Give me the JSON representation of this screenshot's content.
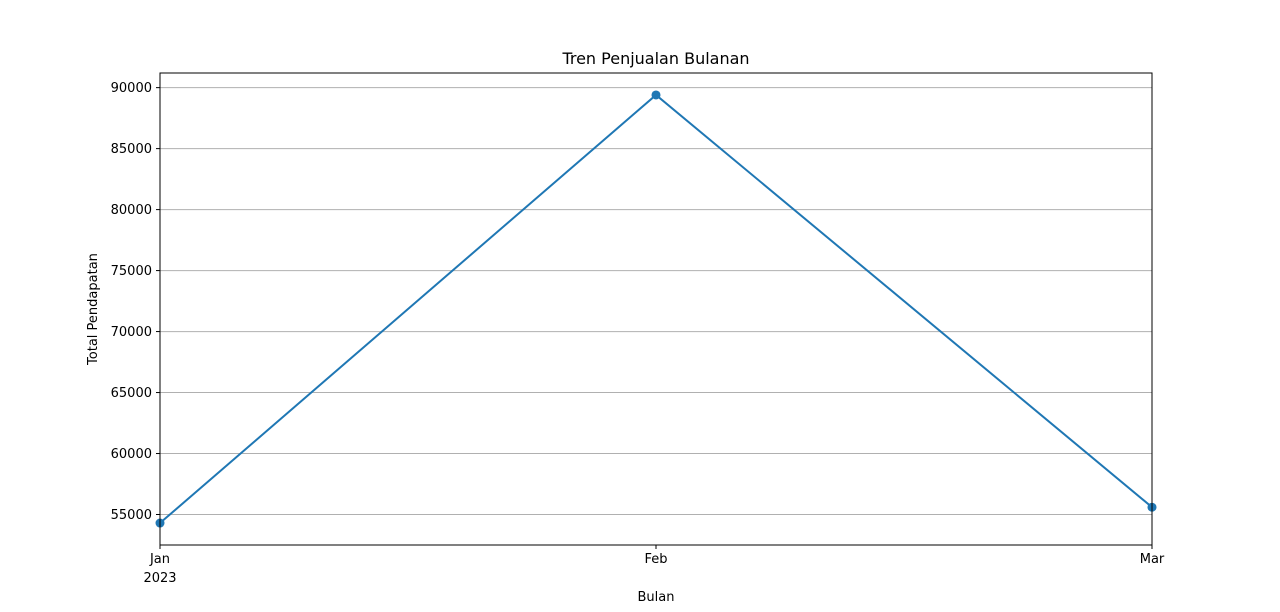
{
  "chart_data": {
    "type": "line",
    "title": "Tren Penjualan Bulanan",
    "xlabel": "Bulan",
    "ylabel": "Total Pendapatan",
    "categories": [
      "Jan",
      "Feb",
      "Mar"
    ],
    "x_tick_sublabels": [
      "2023",
      "",
      ""
    ],
    "series": [
      {
        "values": [
          54300,
          89400,
          55600
        ],
        "color": "#1f77b4"
      }
    ],
    "ylim": [
      52500,
      91200
    ],
    "yticks": [
      55000,
      60000,
      65000,
      70000,
      75000,
      80000,
      85000,
      90000
    ],
    "ytick_labels": [
      "55000",
      "60000",
      "65000",
      "70000",
      "75000",
      "80000",
      "85000",
      "90000"
    ],
    "grid": "y",
    "legend": "none"
  }
}
